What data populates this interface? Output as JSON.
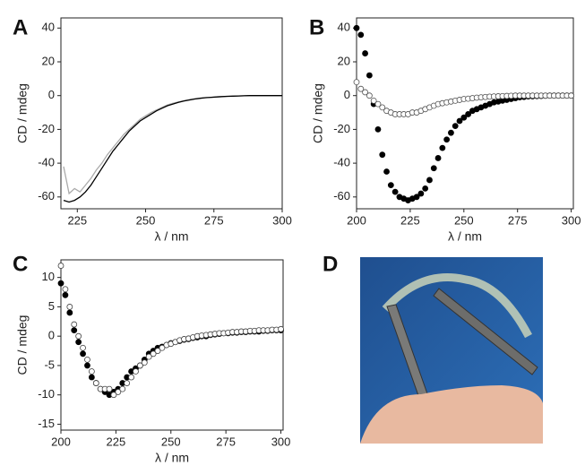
{
  "chart_data": [
    {
      "type": "line",
      "panel": "A",
      "ylabel": "CD / mdeg",
      "xlabel": "λ / nm",
      "xlim": [
        219,
        300
      ],
      "xticks": [
        225,
        250,
        275,
        300
      ],
      "ylim": [
        -67,
        46
      ],
      "yticks": [
        -60,
        -40,
        -20,
        0,
        20,
        40
      ],
      "x": [
        220,
        222,
        224,
        226,
        228,
        230,
        232,
        234,
        236,
        238,
        240,
        242,
        244,
        246,
        248,
        250,
        252,
        254,
        256,
        258,
        260,
        262,
        264,
        266,
        268,
        270,
        272,
        274,
        276,
        278,
        280,
        282,
        284,
        286,
        288,
        290,
        292,
        294,
        296,
        298,
        300
      ],
      "series": [
        {
          "color": "#aaaaaa",
          "values": [
            -42,
            -58,
            -55,
            -57,
            -53,
            -49,
            -44,
            -40,
            -35,
            -31,
            -27,
            -23,
            -20,
            -17,
            -14,
            -12,
            -10,
            -8.5,
            -7,
            -5.5,
            -4.5,
            -3.7,
            -3,
            -2.4,
            -1.9,
            -1.5,
            -1.2,
            -1,
            -0.8,
            -0.6,
            -0.4,
            -0.3,
            -0.2,
            -0.1,
            0,
            0,
            0,
            0,
            0,
            0,
            0
          ]
        },
        {
          "color": "#000000",
          "values": [
            -62,
            -63,
            -62,
            -60,
            -57,
            -53,
            -48,
            -43,
            -38,
            -33,
            -29,
            -25,
            -21,
            -18,
            -15,
            -13,
            -11,
            -9,
            -7.5,
            -6,
            -5,
            -4,
            -3.2,
            -2.6,
            -2,
            -1.6,
            -1.2,
            -1,
            -0.8,
            -0.6,
            -0.4,
            -0.3,
            -0.2,
            -0.1,
            0,
            0,
            0,
            0,
            0,
            0,
            0
          ]
        }
      ]
    },
    {
      "type": "scatter",
      "panel": "B",
      "ylabel": "CD / mdeg",
      "xlabel": "λ / nm",
      "xlim": [
        200,
        301
      ],
      "xticks": [
        200,
        225,
        250,
        275,
        300
      ],
      "ylim": [
        -67,
        46
      ],
      "yticks": [
        -60,
        -40,
        -20,
        0,
        20,
        40
      ],
      "x": [
        200,
        202,
        204,
        206,
        208,
        210,
        212,
        214,
        216,
        218,
        220,
        222,
        224,
        226,
        228,
        230,
        232,
        234,
        236,
        238,
        240,
        242,
        244,
        246,
        248,
        250,
        252,
        254,
        256,
        258,
        260,
        262,
        264,
        266,
        268,
        270,
        272,
        274,
        276,
        278,
        280,
        282,
        284,
        286,
        288,
        290,
        292,
        294,
        296,
        298,
        300
      ],
      "series": [
        {
          "color": "#000000",
          "marker": "filled",
          "values": [
            40,
            36,
            25,
            12,
            -5,
            -20,
            -35,
            -45,
            -53,
            -57,
            -60,
            -61,
            -62,
            -61,
            -60,
            -58,
            -55,
            -50,
            -43,
            -37,
            -31,
            -26,
            -22,
            -18,
            -15,
            -13,
            -11,
            -9,
            -8,
            -7,
            -6,
            -5,
            -4,
            -3.5,
            -3,
            -2.5,
            -2,
            -1.5,
            -1,
            -0.8,
            -0.5,
            -0.4,
            -0.3,
            -0.2,
            -0.1,
            0,
            0,
            0,
            0,
            0,
            0
          ]
        },
        {
          "color": "#555555",
          "marker": "open",
          "values": [
            8,
            4,
            2,
            0,
            -3,
            -5,
            -7,
            -9,
            -10,
            -11,
            -11,
            -11,
            -11,
            -10,
            -10,
            -9,
            -8,
            -7,
            -6,
            -5,
            -4.5,
            -4,
            -3.5,
            -3,
            -2.5,
            -2,
            -1.8,
            -1.5,
            -1.2,
            -1,
            -0.8,
            -0.6,
            -0.5,
            -0.4,
            -0.3,
            -0.2,
            -0.1,
            0,
            0,
            0,
            0,
            0,
            0,
            0,
            0,
            0,
            0,
            0,
            0,
            0,
            0
          ]
        }
      ]
    },
    {
      "type": "scatter",
      "panel": "C",
      "ylabel": "CD / mdeg",
      "xlabel": "λ / nm",
      "xlim": [
        200,
        301
      ],
      "xticks": [
        200,
        225,
        250,
        275,
        300
      ],
      "ylim": [
        -16,
        13
      ],
      "yticks": [
        -15,
        -10,
        -5,
        0,
        5,
        10
      ],
      "x": [
        200,
        202,
        204,
        206,
        208,
        210,
        212,
        214,
        216,
        218,
        220,
        222,
        224,
        226,
        228,
        230,
        232,
        234,
        236,
        238,
        240,
        242,
        244,
        246,
        248,
        250,
        252,
        254,
        256,
        258,
        260,
        262,
        264,
        266,
        268,
        270,
        272,
        274,
        276,
        278,
        280,
        282,
        284,
        286,
        288,
        290,
        292,
        294,
        296,
        298,
        300
      ],
      "series": [
        {
          "color": "#000000",
          "marker": "filled",
          "values": [
            9,
            7,
            4,
            1,
            -1,
            -3,
            -5,
            -7,
            -8,
            -9,
            -9.5,
            -10,
            -9.5,
            -9,
            -8,
            -7,
            -6,
            -5.5,
            -5,
            -4,
            -3,
            -2.5,
            -2,
            -1.8,
            -1.5,
            -1.2,
            -1,
            -0.8,
            -0.6,
            -0.5,
            -0.3,
            -0.2,
            0,
            0,
            0.2,
            0.3,
            0.4,
            0.5,
            0.5,
            0.6,
            0.6,
            0.7,
            0.7,
            0.8,
            0.8,
            0.8,
            0.9,
            0.9,
            1,
            1,
            1
          ]
        },
        {
          "color": "#444444",
          "marker": "open",
          "values": [
            12,
            8,
            5,
            2,
            0,
            -2,
            -4,
            -6,
            -8,
            -9,
            -9,
            -9,
            -10,
            -9.5,
            -9,
            -8,
            -7,
            -6,
            -5,
            -4.5,
            -3.5,
            -3,
            -2.5,
            -2,
            -1.5,
            -1.3,
            -1,
            -0.7,
            -0.5,
            -0.4,
            -0.2,
            0,
            0.1,
            0.2,
            0.3,
            0.4,
            0.5,
            0.5,
            0.6,
            0.7,
            0.7,
            0.8,
            0.8,
            0.9,
            0.9,
            1,
            1,
            1,
            1.1,
            1.1,
            1.2
          ]
        }
      ]
    },
    {
      "type": "image",
      "panel": "D"
    }
  ]
}
